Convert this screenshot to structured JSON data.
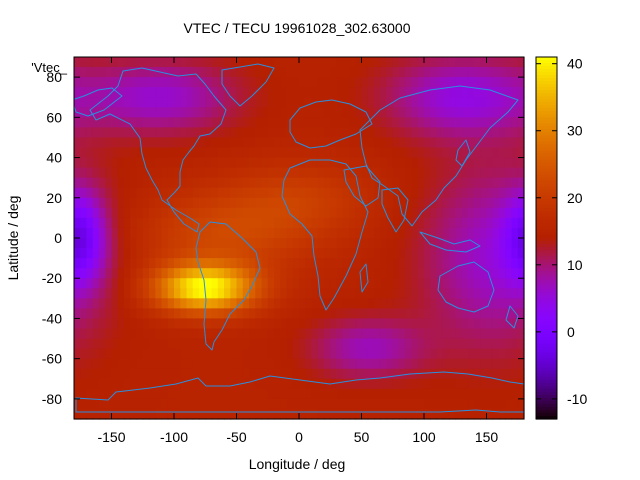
{
  "chart_data": {
    "type": "heatmap",
    "title": "VTEC / TECU 19961028_302.63000",
    "key_label": "'Vtec_",
    "xlabel": "Longitude / deg",
    "ylabel": "Latitude / deg",
    "xlim": [
      -180,
      180
    ],
    "ylim": [
      -90,
      90
    ],
    "xticks": [
      -150,
      -100,
      -50,
      0,
      50,
      100,
      150
    ],
    "yticks": [
      -80,
      -60,
      -40,
      -20,
      0,
      20,
      40,
      60,
      80
    ],
    "colorbar": {
      "range": [
        -13,
        41
      ],
      "ticks": [
        -10,
        0,
        10,
        20,
        30,
        40
      ],
      "palette": "gnuplot pm3d (black-purple-red-orange-yellow)"
    },
    "field": {
      "background": 15,
      "features": [
        {
          "description": "primary maximum over central South America",
          "lon": -75,
          "lat": -25,
          "peak": 41,
          "spread_lon": 40,
          "spread_lat": 12
        },
        {
          "description": "equatorial anomaly band",
          "lon": -60,
          "lat": 2,
          "peak": 22,
          "spread_lon": 70,
          "spread_lat": 20
        },
        {
          "description": "northern-hemisphere ridge over Atlantic and Africa",
          "lon": 0,
          "lat": 20,
          "peak": 20,
          "spread_lon": 60,
          "spread_lat": 18
        },
        {
          "description": "minimum over eastern Pacific",
          "lon": -175,
          "lat": 0,
          "peak": 2,
          "spread_lon": 20,
          "spread_lat": 22
        },
        {
          "description": "minimum over Australia/western Pacific night side",
          "lon": 155,
          "lat": -10,
          "peak": 6,
          "spread_lon": 55,
          "spread_lat": 45
        },
        {
          "description": "minimum over northern Eurasia",
          "lon": 130,
          "lat": 70,
          "peak": 5,
          "spread_lon": 60,
          "spread_lat": 20
        },
        {
          "description": "minimum over northern Canada",
          "lon": -110,
          "lat": 70,
          "peak": 6,
          "spread_lon": 60,
          "spread_lat": 18
        },
        {
          "description": "minimum south of Africa",
          "lon": 55,
          "lat": -55,
          "peak": 7,
          "spread_lon": 45,
          "spread_lat": 15
        }
      ]
    },
    "overlay": "coastlines"
  },
  "colors": {
    "coastline": "#2a8fe0",
    "frame": "#000000",
    "background": "#ffffff"
  }
}
